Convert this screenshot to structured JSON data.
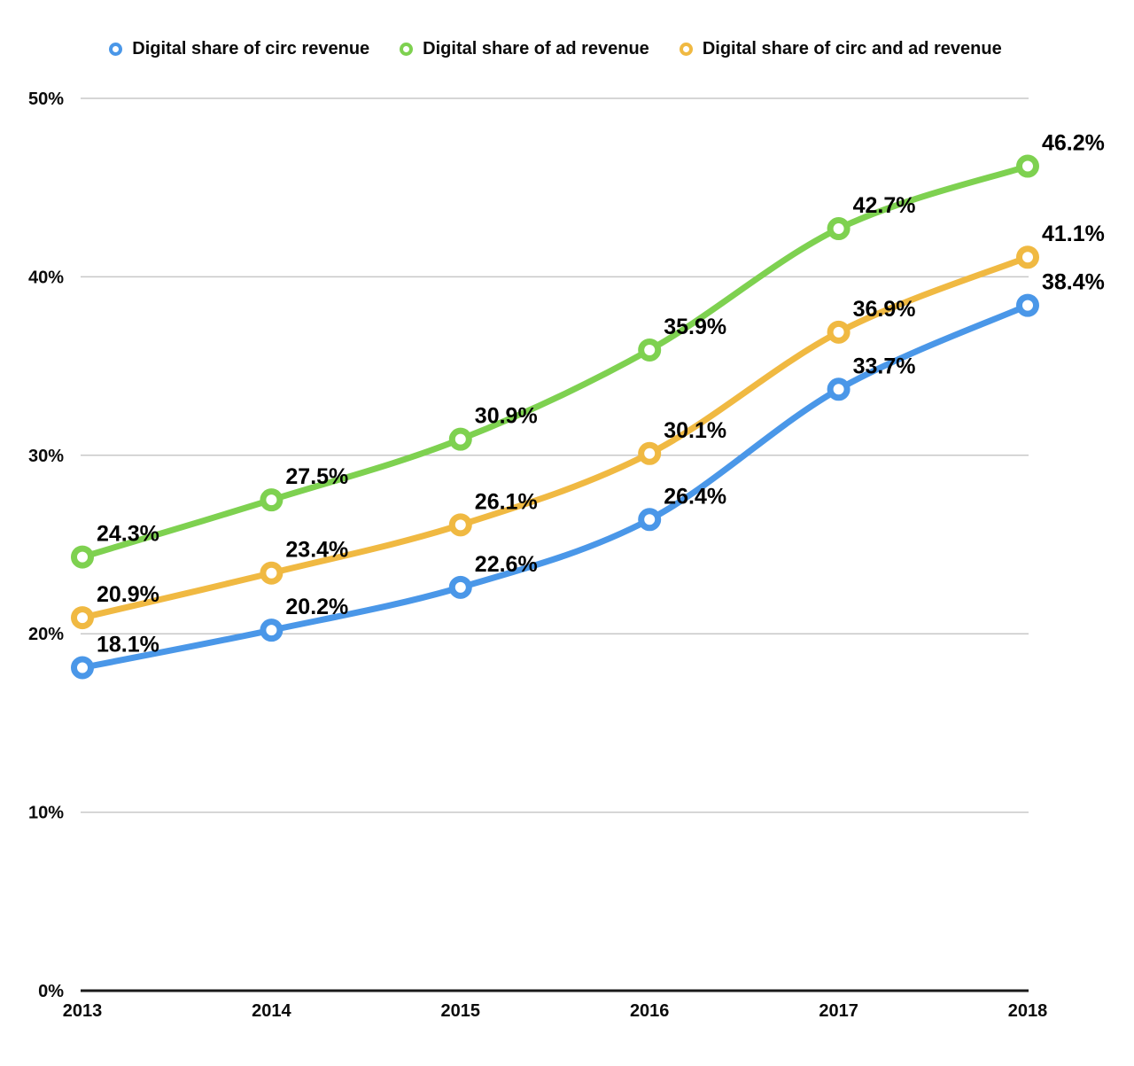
{
  "chart_data": {
    "type": "line",
    "title": "",
    "xlabel": "",
    "ylabel": "",
    "x": [
      "2013",
      "2014",
      "2015",
      "2016",
      "2017",
      "2018"
    ],
    "series": [
      {
        "name": "Digital share of circ revenue",
        "color": "#4A97E8",
        "values": [
          18.1,
          20.2,
          22.6,
          26.4,
          33.7,
          38.4
        ],
        "point_labels": [
          "18.1%",
          "20.2%",
          "22.6%",
          "26.4%",
          "33.7%",
          "38.4%"
        ]
      },
      {
        "name": "Digital share of ad revenue",
        "color": "#7ED150",
        "values": [
          24.3,
          27.5,
          30.9,
          35.9,
          42.7,
          46.2
        ],
        "point_labels": [
          "24.3%",
          "27.5%",
          "30.9%",
          "35.9%",
          "42.7%",
          "46.2%"
        ]
      },
      {
        "name": "Digital share of circ and ad revenue",
        "color": "#F0B942",
        "values": [
          20.9,
          23.4,
          26.1,
          30.1,
          36.9,
          41.1
        ],
        "point_labels": [
          "20.9%",
          "23.4%",
          "26.1%",
          "30.1%",
          "36.9%",
          "41.1%"
        ]
      }
    ],
    "ylim": [
      0,
      50
    ],
    "yticks": [
      0,
      10,
      20,
      30,
      40,
      50
    ],
    "ytick_labels": [
      "0%",
      "10%",
      "20%",
      "30%",
      "40%",
      "50%"
    ],
    "grid": true,
    "legend_position": "top",
    "colors": {
      "grid_line": "#C8C8C8",
      "axis_line": "#1A1A1A",
      "tick_text": "#0B0B0B",
      "point_label_text": "#000000",
      "background": "#FFFFFF"
    }
  }
}
